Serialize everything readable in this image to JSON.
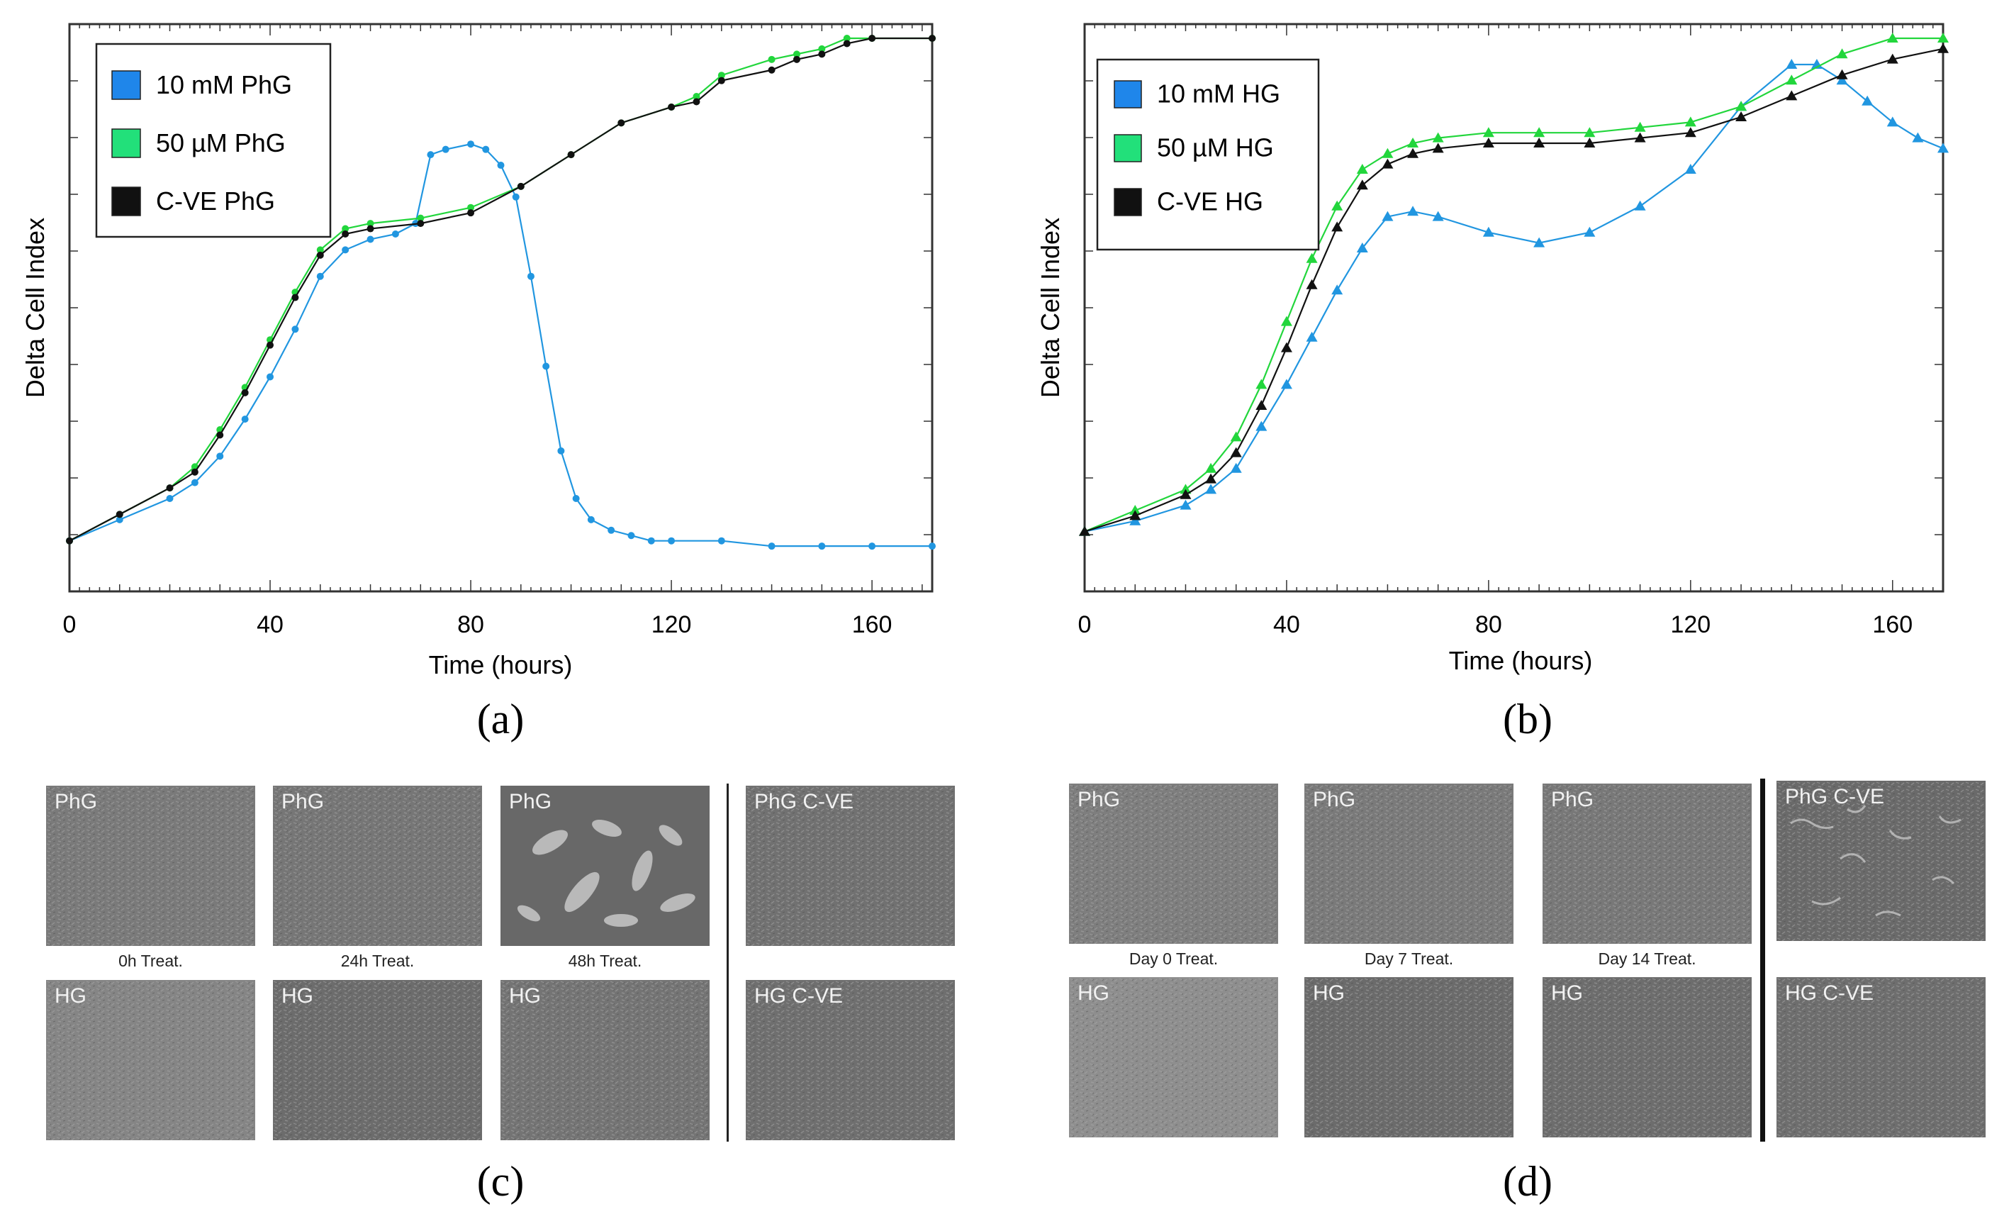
{
  "chart_data": [
    {
      "type": "line",
      "panel_label": "(a)",
      "title": "",
      "xlabel": "Time (hours)",
      "ylabel": "Delta Cell Index",
      "xlim": [
        0,
        172
      ],
      "ylim": [
        0,
        1
      ],
      "xticks": [
        "0",
        "40",
        "80",
        "120",
        "160"
      ],
      "xtick_values": [
        0,
        40,
        80,
        120,
        160
      ],
      "marker": "circle",
      "legend": [
        "10 mM PhG",
        "50 µM PhG",
        "C-VE PhG"
      ],
      "series": [
        {
          "name": "10 mM PhG",
          "color": "#2196e0",
          "x": [
            0,
            10,
            20,
            25,
            30,
            35,
            40,
            45,
            50,
            55,
            60,
            65,
            69,
            72,
            75,
            80,
            83,
            86,
            89,
            92,
            95,
            98,
            101,
            104,
            108,
            112,
            116,
            120,
            130,
            140,
            150,
            160,
            172
          ],
          "y": [
            0.05,
            0.09,
            0.13,
            0.16,
            0.21,
            0.28,
            0.36,
            0.45,
            0.55,
            0.6,
            0.62,
            0.63,
            0.65,
            0.78,
            0.79,
            0.8,
            0.79,
            0.76,
            0.7,
            0.55,
            0.38,
            0.22,
            0.13,
            0.09,
            0.07,
            0.06,
            0.05,
            0.05,
            0.05,
            0.04,
            0.04,
            0.04,
            0.04
          ]
        },
        {
          "name": "50 µM PhG",
          "color": "#22d63c",
          "x": [
            0,
            10,
            20,
            25,
            30,
            35,
            40,
            45,
            50,
            55,
            60,
            70,
            80,
            90,
            100,
            110,
            120,
            125,
            130,
            140,
            145,
            150,
            155,
            160,
            172
          ],
          "y": [
            0.05,
            0.1,
            0.15,
            0.19,
            0.26,
            0.34,
            0.43,
            0.52,
            0.6,
            0.64,
            0.65,
            0.66,
            0.68,
            0.72,
            0.78,
            0.84,
            0.87,
            0.89,
            0.93,
            0.96,
            0.97,
            0.98,
            1.0,
            1.0,
            1.0
          ]
        },
        {
          "name": "C-VE PhG",
          "color": "#111111",
          "x": [
            0,
            10,
            20,
            25,
            30,
            35,
            40,
            45,
            50,
            55,
            60,
            70,
            80,
            90,
            100,
            110,
            120,
            125,
            130,
            140,
            145,
            150,
            155,
            160,
            172
          ],
          "y": [
            0.05,
            0.1,
            0.15,
            0.18,
            0.25,
            0.33,
            0.42,
            0.51,
            0.59,
            0.63,
            0.64,
            0.65,
            0.67,
            0.72,
            0.78,
            0.84,
            0.87,
            0.88,
            0.92,
            0.94,
            0.96,
            0.97,
            0.99,
            1.0,
            1.0
          ]
        }
      ]
    },
    {
      "type": "line",
      "panel_label": "(b)",
      "title": "",
      "xlabel": "Time (hours)",
      "ylabel": "Delta Cell Index",
      "xlim": [
        0,
        170
      ],
      "ylim": [
        0,
        1
      ],
      "xticks": [
        "0",
        "40",
        "80",
        "120",
        "160"
      ],
      "xtick_values": [
        0,
        40,
        80,
        120,
        160
      ],
      "marker": "triangle",
      "legend": [
        "10 mM HG",
        "50 µM HG",
        "C-VE HG"
      ],
      "series": [
        {
          "name": "10 mM HG",
          "color": "#2196e0",
          "x": [
            0,
            10,
            20,
            25,
            30,
            35,
            40,
            45,
            50,
            55,
            60,
            65,
            70,
            80,
            90,
            100,
            110,
            120,
            130,
            140,
            145,
            150,
            155,
            160,
            165,
            170
          ],
          "y": [
            0.06,
            0.08,
            0.11,
            0.14,
            0.18,
            0.26,
            0.34,
            0.43,
            0.52,
            0.6,
            0.66,
            0.67,
            0.66,
            0.63,
            0.61,
            0.63,
            0.68,
            0.75,
            0.87,
            0.95,
            0.95,
            0.92,
            0.88,
            0.84,
            0.81,
            0.79
          ]
        },
        {
          "name": "50 µM HG",
          "color": "#22d63c",
          "x": [
            0,
            10,
            20,
            25,
            30,
            35,
            40,
            45,
            50,
            55,
            60,
            65,
            70,
            80,
            90,
            100,
            110,
            120,
            130,
            140,
            150,
            160,
            170
          ],
          "y": [
            0.06,
            0.1,
            0.14,
            0.18,
            0.24,
            0.34,
            0.46,
            0.58,
            0.68,
            0.75,
            0.78,
            0.8,
            0.81,
            0.82,
            0.82,
            0.82,
            0.83,
            0.84,
            0.87,
            0.92,
            0.97,
            1.0,
            1.0
          ]
        },
        {
          "name": "C-VE HG",
          "color": "#111111",
          "x": [
            0,
            10,
            20,
            25,
            30,
            35,
            40,
            45,
            50,
            55,
            60,
            65,
            70,
            80,
            90,
            100,
            110,
            120,
            130,
            140,
            150,
            160,
            170
          ],
          "y": [
            0.06,
            0.09,
            0.13,
            0.16,
            0.21,
            0.3,
            0.41,
            0.53,
            0.64,
            0.72,
            0.76,
            0.78,
            0.79,
            0.8,
            0.8,
            0.8,
            0.81,
            0.82,
            0.85,
            0.89,
            0.93,
            0.96,
            0.98
          ]
        }
      ]
    }
  ],
  "panels": {
    "a": "(a)",
    "b": "(b)",
    "c": "(c)",
    "d": "(d)"
  },
  "micrographs_c": {
    "top_tags": [
      "PhG",
      "PhG",
      "PhG",
      "PhG C-VE"
    ],
    "bottom_tags": [
      "HG",
      "HG",
      "HG",
      "HG C-VE"
    ],
    "captions": [
      "0h Treat.",
      "24h Treat.",
      "48h Treat."
    ]
  },
  "micrographs_d": {
    "top_tags": [
      "PhG",
      "PhG",
      "PhG",
      "PhG C-VE"
    ],
    "bottom_tags": [
      "HG",
      "HG",
      "HG",
      "HG C-VE"
    ],
    "captions": [
      "Day 0 Treat.",
      "Day 7 Treat.",
      "Day 14 Treat."
    ]
  },
  "colors": {
    "blue": "#2196e0",
    "green": "#22d63c",
    "black": "#111111",
    "legend_blue": "#1f86ea",
    "legend_green": "#22e07a"
  }
}
